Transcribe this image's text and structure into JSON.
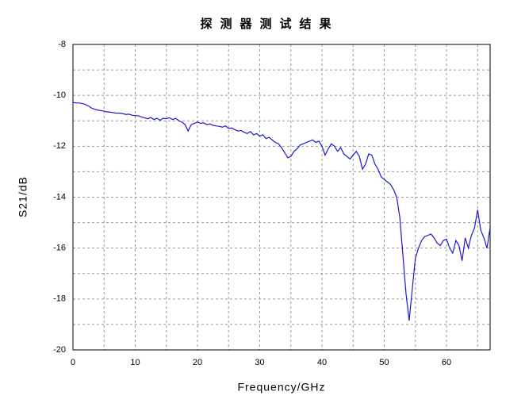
{
  "chart_data": {
    "type": "line",
    "title": "探测器测试结果",
    "x_label": "Frequency/GHz",
    "y_label": "S21/dB",
    "xlim": [
      0,
      67
    ],
    "ylim": [
      -20,
      -8
    ],
    "xticks": [
      0,
      10,
      20,
      30,
      40,
      50,
      60
    ],
    "yticks": [
      -20,
      -18,
      -16,
      -14,
      -12,
      -10,
      -8
    ],
    "grid": true,
    "x": [
      0,
      0.5,
      1,
      1.5,
      2,
      2.5,
      3,
      3.5,
      4,
      4.5,
      5,
      5.5,
      6,
      6.5,
      7,
      7.5,
      8,
      8.5,
      9,
      9.5,
      10,
      10.5,
      11,
      11.5,
      12,
      12.5,
      13,
      13.5,
      14,
      14.5,
      15,
      15.5,
      16,
      16.5,
      17,
      17.5,
      18,
      18.5,
      19,
      19.5,
      20,
      20.5,
      21,
      21.5,
      22,
      22.5,
      23,
      23.5,
      24,
      24.5,
      25,
      25.5,
      26,
      26.5,
      27,
      27.5,
      28,
      28.5,
      29,
      29.5,
      30,
      30.5,
      31,
      31.5,
      32,
      32.5,
      33,
      33.5,
      34,
      34.5,
      35,
      35.5,
      36,
      36.5,
      37,
      37.5,
      38,
      38.5,
      39,
      39.5,
      40,
      40.5,
      41,
      41.5,
      42,
      42.5,
      43,
      43.5,
      44,
      44.5,
      45,
      45.5,
      46,
      46.5,
      47,
      47.5,
      48,
      48.5,
      49,
      49.5,
      50,
      50.5,
      51,
      51.5,
      52,
      52.5,
      53,
      53.5,
      54,
      54.5,
      55,
      55.5,
      56,
      56.5,
      57,
      57.5,
      58,
      58.5,
      59,
      59.5,
      60,
      60.5,
      61,
      61.5,
      62,
      62.5,
      63,
      63.5,
      64,
      64.5,
      65,
      65.5,
      66,
      66.5,
      67
    ],
    "series": [
      {
        "color": "#1a1acc",
        "values": [
          -10.28,
          -10.3,
          -10.3,
          -10.32,
          -10.36,
          -10.42,
          -10.5,
          -10.55,
          -10.58,
          -10.6,
          -10.62,
          -10.65,
          -10.66,
          -10.68,
          -10.7,
          -10.7,
          -10.72,
          -10.75,
          -10.74,
          -10.78,
          -10.8,
          -10.8,
          -10.85,
          -10.88,
          -10.92,
          -10.87,
          -10.95,
          -10.9,
          -10.98,
          -10.9,
          -10.92,
          -10.88,
          -10.95,
          -10.9,
          -11.0,
          -11.05,
          -11.15,
          -11.4,
          -11.15,
          -11.1,
          -11.05,
          -11.1,
          -11.08,
          -11.15,
          -11.12,
          -11.18,
          -11.2,
          -11.22,
          -11.25,
          -11.2,
          -11.3,
          -11.28,
          -11.35,
          -11.4,
          -11.38,
          -11.45,
          -11.5,
          -11.42,
          -11.55,
          -11.5,
          -11.6,
          -11.55,
          -11.7,
          -11.65,
          -11.75,
          -11.85,
          -11.9,
          -12.05,
          -12.25,
          -12.45,
          -12.4,
          -12.2,
          -12.1,
          -11.95,
          -11.9,
          -11.85,
          -11.8,
          -11.75,
          -11.85,
          -11.8,
          -12.0,
          -12.35,
          -12.1,
          -11.9,
          -12.0,
          -12.2,
          -12.05,
          -12.3,
          -12.4,
          -12.5,
          -12.35,
          -12.2,
          -12.4,
          -12.9,
          -12.7,
          -12.3,
          -12.35,
          -12.7,
          -12.9,
          -13.2,
          -13.3,
          -13.4,
          -13.5,
          -13.7,
          -14.0,
          -14.8,
          -16.3,
          -17.8,
          -18.85,
          -17.6,
          -16.4,
          -16.0,
          -15.7,
          -15.55,
          -15.5,
          -15.45,
          -15.6,
          -15.8,
          -15.9,
          -15.7,
          -15.65,
          -16.0,
          -16.2,
          -15.7,
          -15.9,
          -16.5,
          -15.6,
          -16.0,
          -15.5,
          -15.2,
          -14.5,
          -15.3,
          -15.6,
          -16.0,
          -15.2
        ]
      }
    ]
  }
}
